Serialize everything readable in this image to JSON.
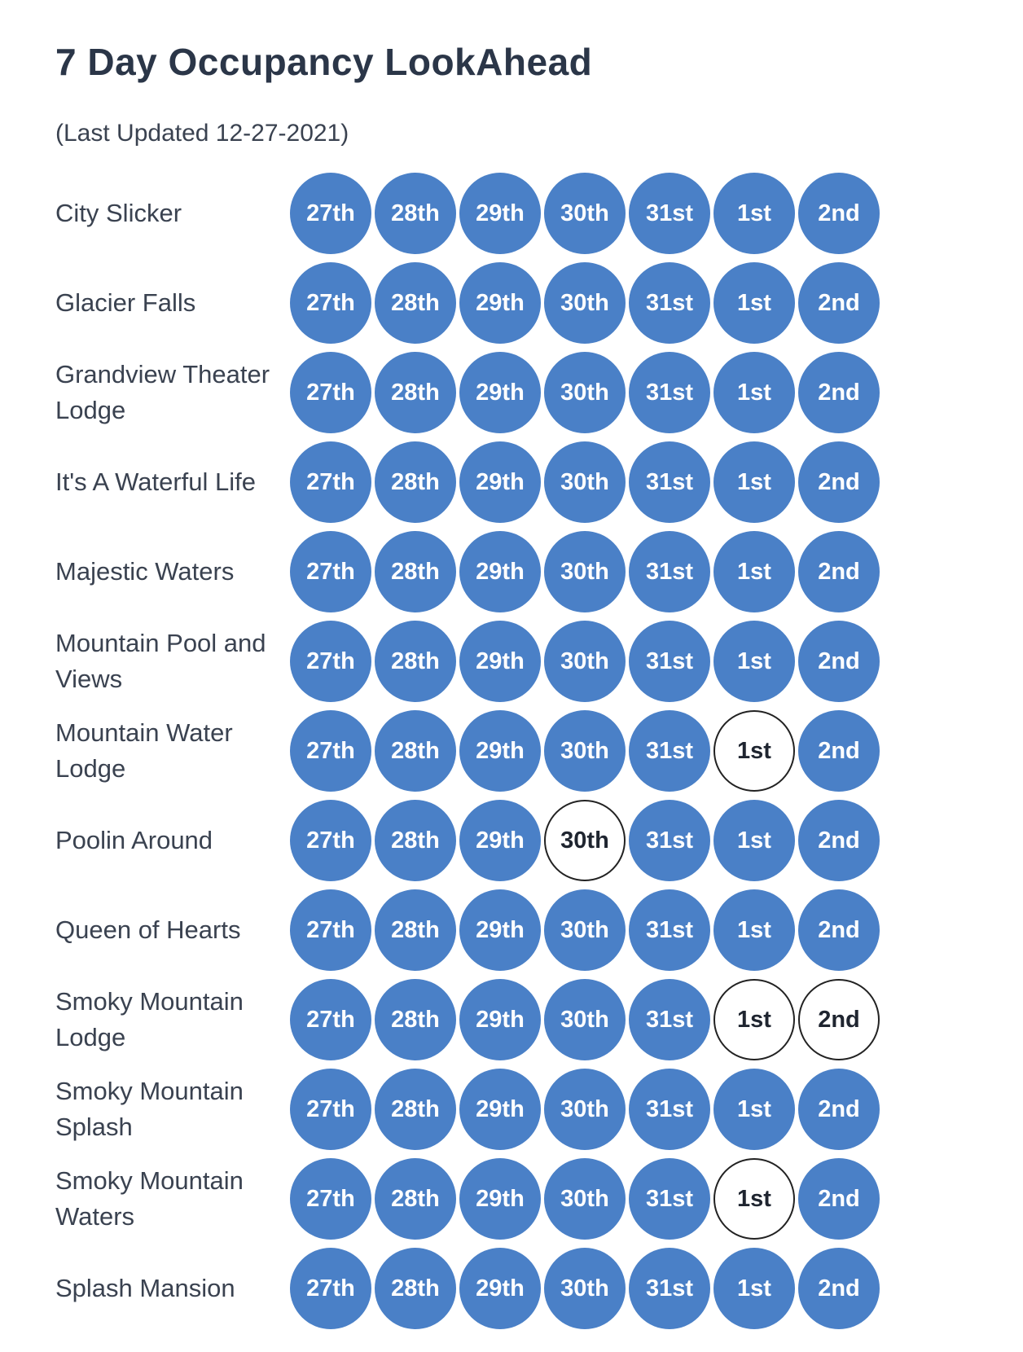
{
  "title": "7 Day Occupancy LookAhead",
  "last_updated": "(Last Updated 12-27-2021)",
  "colors": {
    "booked": "#4a80c7",
    "available": "#ffffff",
    "text": "#3a4250"
  },
  "days": [
    "27th",
    "28th",
    "29th",
    "30th",
    "31st",
    "1st",
    "2nd"
  ],
  "properties": [
    {
      "name": "City Slicker",
      "available": []
    },
    {
      "name": "Glacier Falls",
      "available": []
    },
    {
      "name": "Grandview Theater Lodge",
      "available": []
    },
    {
      "name": "It's A Waterful Life",
      "available": []
    },
    {
      "name": "Majestic Waters",
      "available": []
    },
    {
      "name": "Mountain Pool and Views",
      "available": []
    },
    {
      "name": "Mountain Water Lodge",
      "available": [
        "1st"
      ]
    },
    {
      "name": "Poolin Around",
      "available": [
        "30th"
      ]
    },
    {
      "name": "Queen of Hearts",
      "available": []
    },
    {
      "name": "Smoky Mountain Lodge",
      "available": [
        "1st",
        "2nd"
      ]
    },
    {
      "name": "Smoky Mountain Splash",
      "available": []
    },
    {
      "name": "Smoky Mountain Waters",
      "available": [
        "1st"
      ]
    },
    {
      "name": "Splash Mansion",
      "available": []
    }
  ]
}
